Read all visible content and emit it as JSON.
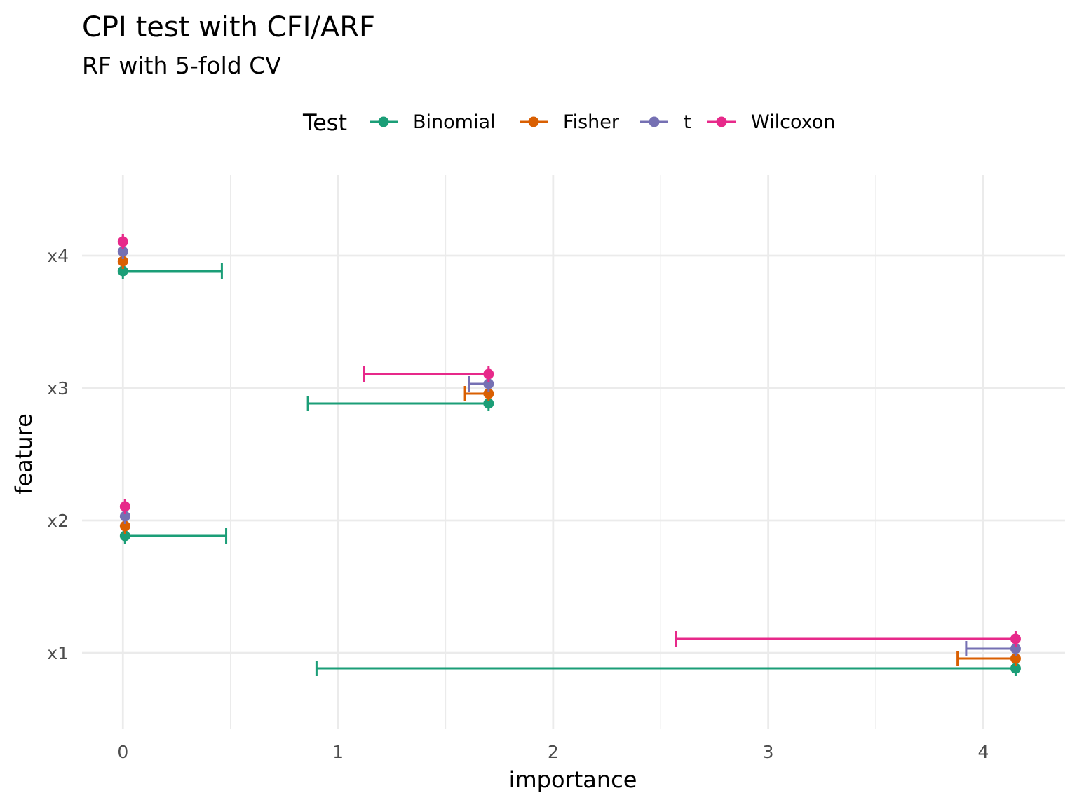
{
  "chart_data": {
    "type": "errorbar",
    "title": "CPI test with CFI/ARF",
    "subtitle": "RF with 5-fold CV",
    "xlabel": "importance",
    "ylabel": "feature",
    "xlim": [
      -0.19,
      4.38
    ],
    "x_ticks": [
      "0",
      "1",
      "2",
      "3",
      "4"
    ],
    "categories": [
      "x1",
      "x2",
      "x3",
      "x4"
    ],
    "legend": {
      "title": "Test",
      "position": "top"
    },
    "grid": true,
    "series": [
      {
        "name": "Binomial",
        "color": "#1b9e77",
        "estimates": [
          4.15,
          0.01,
          1.7,
          0.0
        ],
        "lower": [
          0.9,
          0.01,
          0.86,
          0.0
        ],
        "upper": [
          4.15,
          0.48,
          1.7,
          0.46
        ]
      },
      {
        "name": "Fisher",
        "color": "#d95f02",
        "estimates": [
          4.15,
          0.01,
          1.7,
          0.0
        ],
        "lower": [
          3.88,
          0.01,
          1.59,
          0.0
        ],
        "upper": [
          4.15,
          0.01,
          1.7,
          0.0
        ]
      },
      {
        "name": "t",
        "color": "#7570b3",
        "estimates": [
          4.15,
          0.01,
          1.7,
          0.0
        ],
        "lower": [
          3.92,
          0.01,
          1.61,
          0.0
        ],
        "upper": [
          4.15,
          0.01,
          1.7,
          0.0
        ]
      },
      {
        "name": "Wilcoxon",
        "color": "#e7298a",
        "estimates": [
          4.15,
          0.01,
          1.7,
          0.0
        ],
        "lower": [
          2.57,
          0.01,
          1.12,
          0.0
        ],
        "upper": [
          4.15,
          0.01,
          1.7,
          0.0
        ]
      }
    ]
  }
}
